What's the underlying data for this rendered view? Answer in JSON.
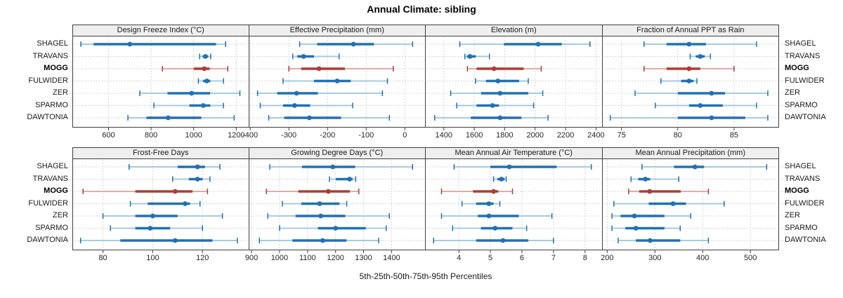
{
  "title": "Annual Climate: sibling",
  "caption": "5th-25th-50th-75th-95th Percentiles",
  "stations": [
    "SHAGEL",
    "TRAVANS",
    "MOGG",
    "FULWIDER",
    "ZER",
    "SPARMO",
    "DAWTONIA"
  ],
  "highlight_station": "MOGG",
  "percentile_labels": [
    "5th",
    "25th",
    "50th",
    "75th",
    "95th"
  ],
  "colors": {
    "series": "#2171b5",
    "series_light": "#a6cbe0",
    "highlight": "#b23b33",
    "highlight_light": "#e5aba6",
    "header_bg": "#efefef",
    "border": "#3f3f3f",
    "grid": "#c8c8c8",
    "text": "#1a1a1a"
  },
  "chart_data": {
    "type": "scatter",
    "variant": "trellis-percentile-dotplot",
    "grid_rows": 2,
    "grid_cols": 4,
    "y_categories": [
      "SHAGEL",
      "TRAVANS",
      "MOGG",
      "FULWIDER",
      "ZER",
      "SPARMO",
      "DAWTONIA"
    ],
    "legend": "none",
    "panels": [
      {
        "title": "Design Freeze Index (°C)",
        "xlim": [
          430,
          1260
        ],
        "ticks": [
          600,
          800,
          1000,
          1200
        ],
        "values": {
          "SHAGEL": [
            470,
            530,
            700,
            1105,
            1150
          ],
          "TRAVANS": [
            1028,
            1042,
            1055,
            1068,
            1080
          ],
          "MOGG": [
            853,
            1000,
            1050,
            1075,
            1160
          ],
          "FULWIDER": [
            1022,
            1044,
            1062,
            1078,
            1140
          ],
          "ZER": [
            747,
            877,
            990,
            1077,
            1217
          ],
          "SPARMO": [
            813,
            980,
            1045,
            1078,
            1140
          ],
          "DAWTONIA": [
            691,
            778,
            880,
            1036,
            1190
          ]
        }
      },
      {
        "title": "Effective Precipitation (mm)",
        "xlim": [
          -403,
          54
        ],
        "ticks": [
          -400,
          -300,
          -200,
          -100,
          0
        ],
        "values": {
          "SHAGEL": [
            -272,
            -227,
            -133,
            -80,
            20
          ],
          "TRAVANS": [
            -290,
            -278,
            -262,
            -235,
            -170
          ],
          "MOGG": [
            -300,
            -268,
            -222,
            -155,
            -30
          ],
          "FULWIDER": [
            -315,
            -235,
            -175,
            -140,
            -45
          ],
          "ZER": [
            -381,
            -330,
            -280,
            -225,
            -58
          ],
          "SPARMO": [
            -374,
            -315,
            -285,
            -245,
            -135
          ],
          "DAWTONIA": [
            -352,
            -312,
            -247,
            -165,
            -40
          ]
        }
      },
      {
        "title": "Elevation (m)",
        "xlim": [
          1281,
          2442
        ],
        "ticks": [
          1400,
          1600,
          1800,
          2000,
          2200,
          2400
        ],
        "values": {
          "SHAGEL": [
            1505,
            1795,
            2020,
            2175,
            2360
          ],
          "TRAVANS": [
            1538,
            1552,
            1572,
            1610,
            1700
          ],
          "MOGG": [
            1555,
            1615,
            1730,
            1925,
            2040
          ],
          "FULWIDER": [
            1608,
            1677,
            1755,
            1895,
            1955
          ],
          "ZER": [
            1445,
            1645,
            1770,
            1955,
            2050
          ],
          "SPARMO": [
            1485,
            1615,
            1720,
            1762,
            1990
          ],
          "DAWTONIA": [
            1340,
            1577,
            1770,
            1910,
            2085
          ]
        }
      },
      {
        "title": "Fraction of Annual PPT as Rain",
        "xlim": [
          73.3,
          89.0
        ],
        "ticks": [
          75,
          80,
          85
        ],
        "values": {
          "SHAGEL": [
            77,
            79,
            81,
            82.5,
            87
          ],
          "TRAVANS": [
            81.1,
            81.6,
            82,
            82.4,
            82.9
          ],
          "MOGG": [
            77,
            79,
            81,
            82,
            85
          ],
          "FULWIDER": [
            78.5,
            80.3,
            81,
            81.4,
            81.7
          ],
          "ZER": [
            76.2,
            80,
            83,
            84.2,
            88
          ],
          "SPARMO": [
            78,
            81,
            82,
            84,
            87
          ],
          "DAWTONIA": [
            74,
            80,
            83,
            86,
            88
          ]
        }
      },
      {
        "title": "Frost-Free Days",
        "xlim": [
          67.7,
          138.7
        ],
        "ticks": [
          80,
          100,
          120
        ],
        "values": {
          "SHAGEL": [
            90.5,
            110,
            118,
            121,
            127
          ],
          "TRAVANS": [
            108,
            114.5,
            118,
            120,
            123
          ],
          "MOGG": [
            72,
            93,
            109,
            116,
            122
          ],
          "FULWIDER": [
            91,
            98,
            113,
            115,
            119
          ],
          "ZER": [
            80,
            93,
            100,
            110,
            128
          ],
          "SPARMO": [
            83,
            93,
            99,
            107,
            120
          ],
          "DAWTONIA": [
            71,
            87,
            109,
            124,
            134
          ]
        }
      },
      {
        "title": "Growing Degree Days (°C)",
        "xlim": [
          891,
          1522
        ],
        "ticks": [
          900,
          1000,
          1100,
          1200,
          1300,
          1400
        ],
        "values": {
          "SHAGEL": [
            965,
            1080,
            1190,
            1270,
            1475
          ],
          "TRAVANS": [
            1178,
            1201,
            1250,
            1261,
            1272
          ],
          "MOGG": [
            953,
            1067,
            1174,
            1251,
            1283
          ],
          "FULWIDER": [
            1010,
            1078,
            1143,
            1214,
            1240
          ],
          "ZER": [
            958,
            1057,
            1147,
            1235,
            1392
          ],
          "SPARMO": [
            1000,
            1137,
            1200,
            1308,
            1381
          ],
          "DAWTONIA": [
            928,
            1046,
            1154,
            1239,
            1354
          ]
        }
      },
      {
        "title": "Mean Annual Air Temperature (°C)",
        "xlim": [
          2.95,
          8.55
        ],
        "ticks": [
          4,
          5,
          6,
          7,
          8
        ],
        "values": {
          "SHAGEL": [
            3.85,
            5.0,
            5.6,
            7.1,
            8.2
          ],
          "TRAVANS": [
            5.1,
            5.22,
            5.35,
            5.45,
            5.5
          ],
          "MOGG": [
            3.45,
            4.45,
            5.1,
            5.25,
            5.7
          ],
          "FULWIDER": [
            4.1,
            4.55,
            4.95,
            5.1,
            5.3
          ],
          "ZER": [
            3.45,
            4.6,
            4.95,
            5.9,
            6.95
          ],
          "SPARMO": [
            3.8,
            4.7,
            5.15,
            5.7,
            6.15
          ],
          "DAWTONIA": [
            3.2,
            4.55,
            5.4,
            6.2,
            7.0
          ]
        }
      },
      {
        "title": "Mean Annual Precipitation (mm)",
        "xlim": [
          190,
          560
        ],
        "ticks": [
          200,
          300,
          400,
          500
        ],
        "values": {
          "SHAGEL": [
            273,
            340,
            384,
            403,
            534
          ],
          "TRAVANS": [
            250,
            265,
            280,
            290,
            350
          ],
          "MOGG": [
            245,
            267,
            289,
            354,
            412
          ],
          "FULWIDER": [
            214,
            287,
            338,
            365,
            445
          ],
          "ZER": [
            210,
            228,
            257,
            320,
            375
          ],
          "SPARMO": [
            210,
            238,
            260,
            320,
            353
          ],
          "DAWTONIA": [
            223,
            260,
            290,
            353,
            412
          ]
        }
      }
    ]
  }
}
